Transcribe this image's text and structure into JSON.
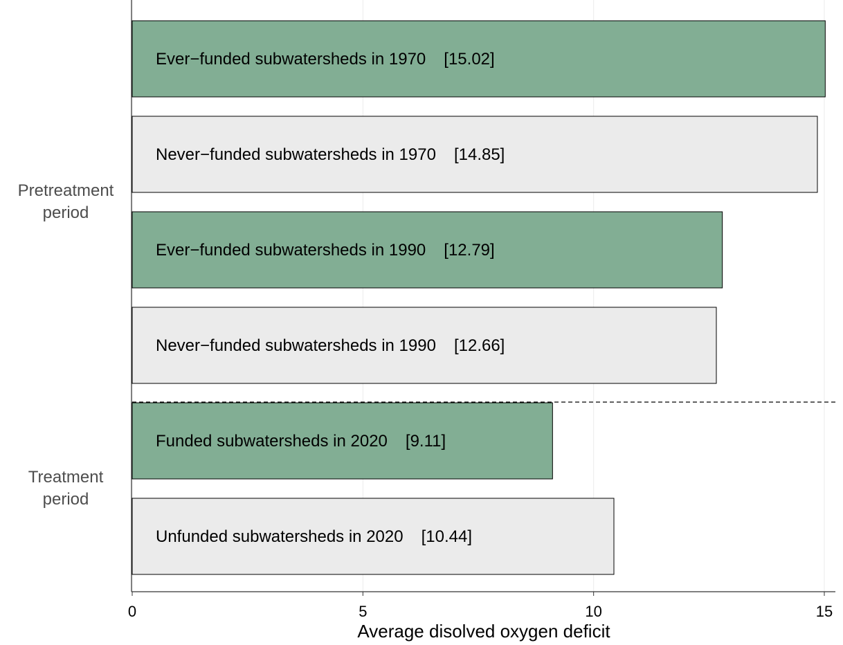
{
  "chart_data": {
    "type": "bar",
    "orientation": "horizontal",
    "x_label": "Average disolved oxygen deficit",
    "categories": [
      "Ever−funded subwatersheds in 1970",
      "Never−funded subwatersheds in 1970",
      "Ever−funded subwatersheds in 1990",
      "Never−funded subwatersheds in 1990",
      "Funded subwatersheds in 2020",
      "Unfunded subwatersheds in 2020"
    ],
    "values": [
      15.02,
      14.85,
      12.79,
      12.66,
      9.11,
      10.44
    ],
    "value_labels": [
      "[15.02]",
      "[14.85]",
      "[12.79]",
      "[12.66]",
      "[9.11]",
      "[10.44]"
    ],
    "colors": [
      "#82ae94",
      "#ebebeb",
      "#82ae94",
      "#ebebeb",
      "#82ae94",
      "#ebebeb"
    ],
    "groups": [
      "Pretreatment period",
      "Treatment period"
    ],
    "xlim": [
      0,
      15.24
    ],
    "xticks": [
      0,
      5,
      10,
      15
    ],
    "grid": true
  }
}
